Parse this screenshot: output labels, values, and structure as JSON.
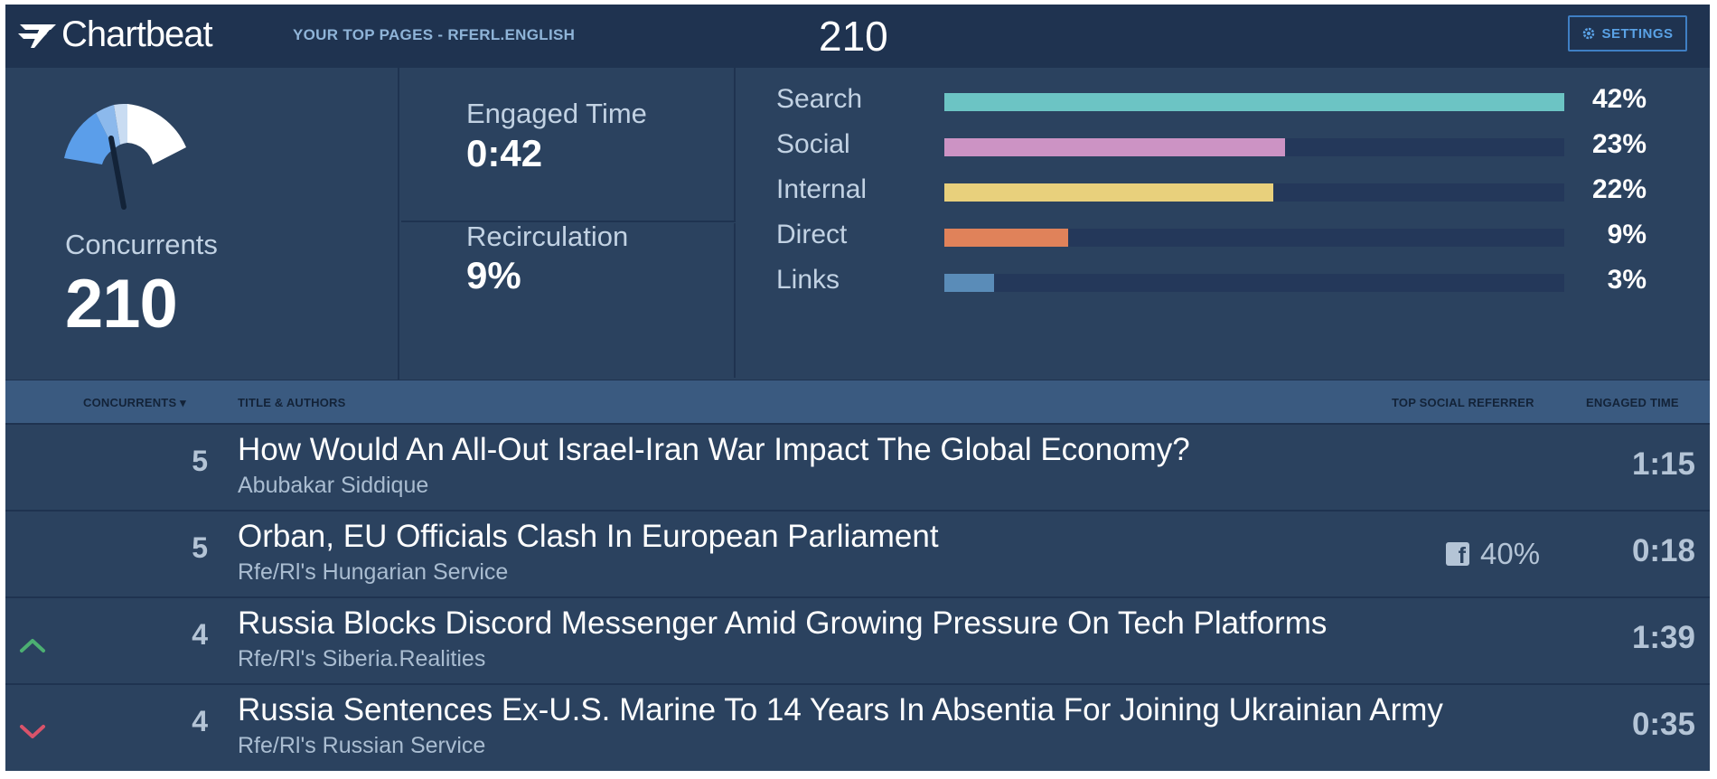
{
  "header": {
    "logo_text": "Chartbeat",
    "page_label": "YOUR TOP PAGES - RFERL.ENGLISH",
    "concurrents_total": "210",
    "settings_label": "SETTINGS"
  },
  "stats": {
    "concurrents_label": "Concurrents",
    "concurrents_value": "210",
    "engaged_time_label": "Engaged Time",
    "engaged_time_value": "0:42",
    "recirculation_label": "Recirculation",
    "recirculation_value": "9%"
  },
  "referrers": [
    {
      "name": "Search",
      "pct_label": "42%",
      "value": 1.0,
      "color": "#6cc4c4"
    },
    {
      "name": "Social",
      "pct_label": "23%",
      "value": 0.55,
      "color": "#cc93c4"
    },
    {
      "name": "Internal",
      "pct_label": "22%",
      "value": 0.53,
      "color": "#e8d07c"
    },
    {
      "name": "Direct",
      "pct_label": "9%",
      "value": 0.2,
      "color": "#e0825a"
    },
    {
      "name": "Links",
      "pct_label": "3%",
      "value": 0.08,
      "color": "#5a8cb8"
    }
  ],
  "table": {
    "headers": {
      "concurrents": "CONCURRENTS ▾",
      "title_authors": "TITLE & AUTHORS",
      "top_social": "TOP SOCIAL REFERRER",
      "engaged_time": "ENGAGED TIME"
    },
    "rows": [
      {
        "trend": "",
        "count": "5",
        "title": "How Would An All-Out Israel-Iran War Impact The Global Economy?",
        "author": "Abubakar Siddique",
        "social": "",
        "time": "1:15"
      },
      {
        "trend": "",
        "count": "5",
        "title": "Orban, EU Officials Clash In European Parliament",
        "author": "Rfe/Rl's Hungarian Service",
        "social": "40%",
        "time": "0:18"
      },
      {
        "trend": "up",
        "count": "4",
        "title": "Russia Blocks Discord Messenger Amid Growing Pressure On Tech Platforms",
        "author": "Rfe/Rl's Siberia.Realities",
        "social": "",
        "time": "1:39"
      },
      {
        "trend": "down",
        "count": "4",
        "title": "Russia Sentences Ex-U.S. Marine To 14 Years In Absentia For Joining Ukrainian Army",
        "author": "Rfe/Rl's Russian Service",
        "social": "",
        "time": "0:35"
      }
    ]
  },
  "colors": {
    "background": "#2b425f",
    "topbar": "#1f3350",
    "header_row": "#3a5a80",
    "trend_up": "#4caf72",
    "trend_down": "#d9536a",
    "accent": "#3f7fc4"
  }
}
